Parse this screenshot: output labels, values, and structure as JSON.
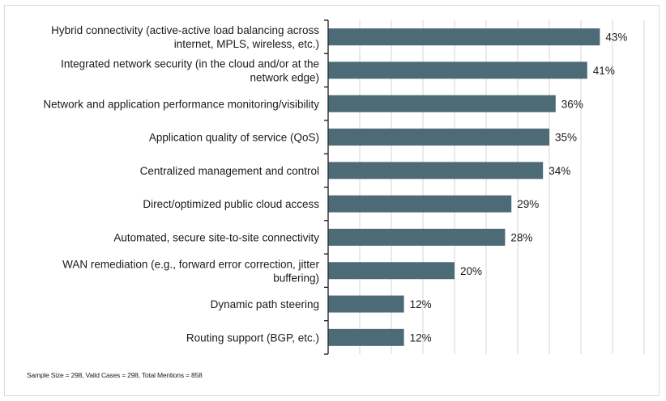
{
  "chart_data": {
    "type": "bar",
    "orientation": "horizontal",
    "title": "",
    "xlabel": "",
    "ylabel": "",
    "categories": [
      [
        "Hybrid connectivity (active-active load balancing across",
        "internet, MPLS, wireless, etc.)"
      ],
      [
        "Integrated network security (in the cloud and/or at the",
        "network edge)"
      ],
      [
        "Network and application performance monitoring/visibility"
      ],
      [
        "Application quality of service (QoS)"
      ],
      [
        "Centralized management and control"
      ],
      [
        "Direct/optimized public cloud access"
      ],
      [
        "Automated, secure site-to-site connectivity"
      ],
      [
        "WAN remediation (e.g., forward error correction, jitter",
        "buffering)"
      ],
      [
        "Dynamic path steering"
      ],
      [
        "Routing support (BGP, etc.)"
      ]
    ],
    "values": [
      43,
      41,
      36,
      35,
      34,
      29,
      28,
      20,
      12,
      12
    ],
    "value_labels": [
      "43%",
      "41%",
      "36%",
      "35%",
      "34%",
      "29%",
      "28%",
      "20%",
      "12%",
      "12%"
    ],
    "xlim": [
      0,
      50
    ],
    "grid_step": 5,
    "grid": true,
    "bar_color": "#4d6b76",
    "grid_color": "#d4d4d4"
  },
  "footnote": "Sample Size = 298, Valid Cases = 298, Total Mentions = 858"
}
